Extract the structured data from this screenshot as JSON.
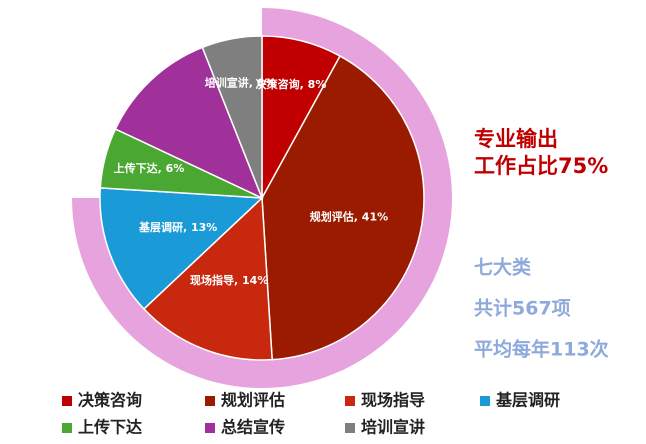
{
  "chart_data": {
    "type": "pie",
    "categories": [
      "决策咨询",
      "规划评估",
      "现场指导",
      "基层调研",
      "上传下达",
      "总结宣传",
      "培训宣讲"
    ],
    "values": [
      8,
      41,
      14,
      13,
      6,
      12,
      6
    ],
    "value_labels": [
      "决策咨询, 8%",
      "规划评估, 41%",
      "现场指导, 14%",
      "基层调研, 13%",
      "上传下达, 6%",
      null,
      "培训宣讲, 6%"
    ],
    "colors": [
      "#c00000",
      "#9b1b00",
      "#c8280e",
      "#1a9ad6",
      "#4aa832",
      "#a0309a",
      "#7f7f7f"
    ],
    "highlight_arc": {
      "value": 75,
      "color": "#e6a3dd"
    },
    "annotations_red": [
      "专业输出",
      "工作占比75%"
    ],
    "annotations_blue": [
      "七大类",
      "共计567项",
      "平均每年113次"
    ],
    "legend": "bottom"
  }
}
